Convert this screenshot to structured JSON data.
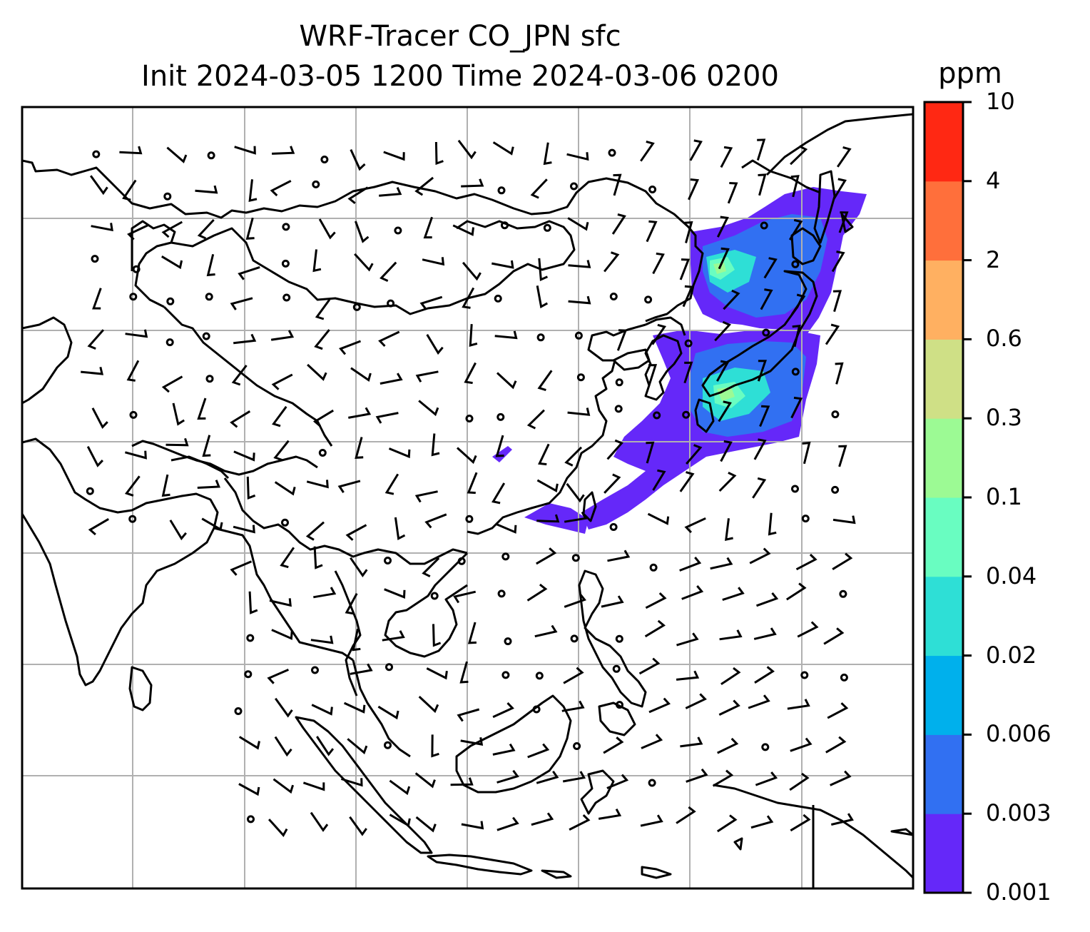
{
  "title": {
    "line1": "WRF-Tracer CO_JPN sfc",
    "line2": "Init 2024-03-05 1200 Time 2024-03-06 0200"
  },
  "colorbar": {
    "unit": "ppm",
    "levels": [
      "0.001",
      "0.003",
      "0.006",
      "0.02",
      "0.04",
      "0.1",
      "0.3",
      "0.6",
      "2",
      "4",
      "10"
    ],
    "colors": [
      "#6528f9",
      "#3170f2",
      "#00b0ec",
      "#2edfd6",
      "#69fdc1",
      "#9cfa94",
      "#cfe086",
      "#ffb061",
      "#ff6f3b",
      "#ff2813"
    ]
  },
  "map": {
    "region": "East and Southeast Asia",
    "gridlines": true,
    "land_fill": "none",
    "coastline_color": "#000000",
    "gridline_color": "#b0b0b0",
    "tracer_plume": "lowest levels (0.001–0.1 ppm) over Japan, Korea, East China Sea and western Pacific",
    "wind_barbs": true,
    "calm_circles": true
  }
}
